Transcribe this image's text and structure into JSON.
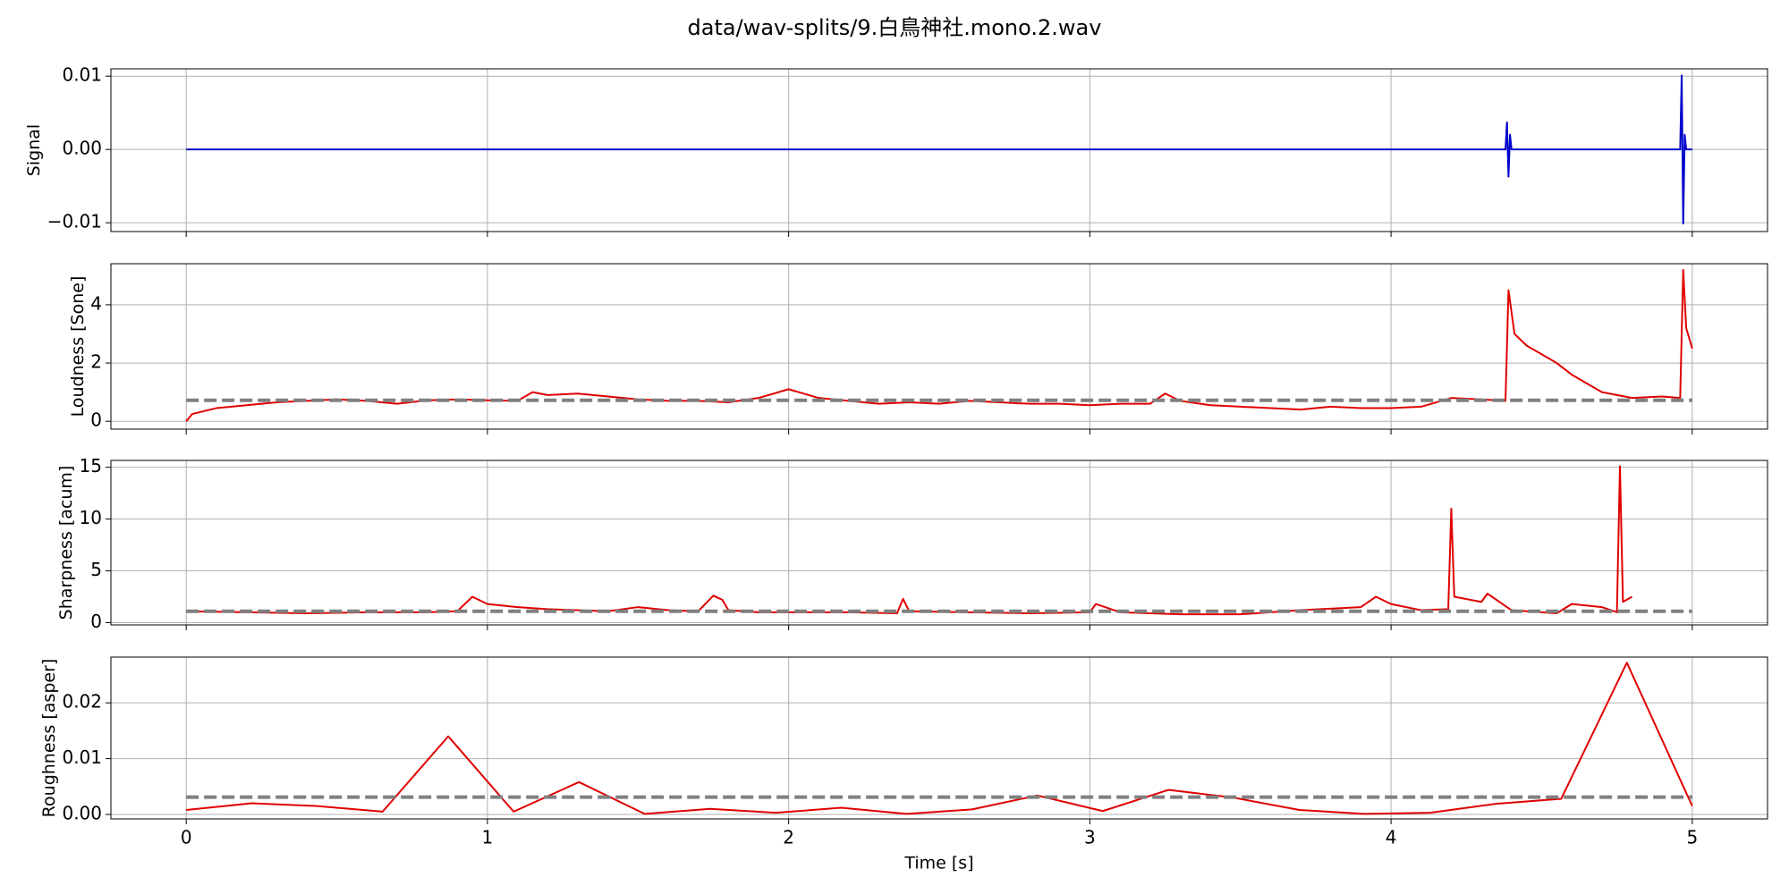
{
  "title": "data/wav-splits/9.白鳥神社.mono.2.wav",
  "chart_data": [
    {
      "type": "line",
      "ylabel": "Signal",
      "grid": true,
      "xlim": [
        -0.25,
        5.25
      ],
      "xticks": [
        0,
        1,
        2,
        3,
        4,
        5
      ],
      "ylim": [
        -0.0112,
        0.011
      ],
      "yticks": [
        {
          "value": -0.01,
          "label": "−0.01"
        },
        {
          "value": 0,
          "label": "0.00"
        },
        {
          "value": 0.01,
          "label": "0.01"
        }
      ],
      "series": [
        {
          "color": "#0000cc",
          "style": "solid",
          "x": [
            0,
            4.38,
            4.385,
            4.39,
            4.395,
            4.4,
            4.5,
            4.96,
            4.965,
            4.97,
            4.975,
            4.98,
            5.0
          ],
          "values": [
            0,
            0,
            0.0037,
            -0.0037,
            0.002,
            0,
            0,
            0,
            0.0101,
            -0.0101,
            0.002,
            0,
            0
          ]
        }
      ]
    },
    {
      "type": "line",
      "ylabel": "Loudness [Sone]",
      "grid": true,
      "xlim": [
        -0.25,
        5.25
      ],
      "xticks": [
        0,
        1,
        2,
        3,
        4,
        5
      ],
      "ylim": [
        -0.27,
        5.41
      ],
      "yticks": [
        0,
        2,
        4
      ],
      "series": [
        {
          "color": "#e00000",
          "style": "solid",
          "x": [
            0,
            0.02,
            0.1,
            0.2,
            0.3,
            0.4,
            0.5,
            0.6,
            0.7,
            0.8,
            0.9,
            1.0,
            1.1,
            1.15,
            1.2,
            1.3,
            1.4,
            1.5,
            1.6,
            1.7,
            1.8,
            1.9,
            2.0,
            2.1,
            2.2,
            2.3,
            2.4,
            2.5,
            2.6,
            2.7,
            2.8,
            2.9,
            3.0,
            3.1,
            3.2,
            3.25,
            3.3,
            3.4,
            3.5,
            3.6,
            3.7,
            3.8,
            3.9,
            4.0,
            4.1,
            4.2,
            4.3,
            4.38,
            4.39,
            4.41,
            4.45,
            4.5,
            4.55,
            4.6,
            4.7,
            4.8,
            4.9,
            4.96,
            4.97,
            4.98,
            5.0
          ],
          "values": [
            0,
            0.25,
            0.45,
            0.55,
            0.65,
            0.7,
            0.75,
            0.7,
            0.6,
            0.72,
            0.75,
            0.72,
            0.7,
            1.0,
            0.9,
            0.95,
            0.85,
            0.75,
            0.7,
            0.7,
            0.65,
            0.8,
            1.1,
            0.8,
            0.7,
            0.6,
            0.65,
            0.6,
            0.7,
            0.65,
            0.6,
            0.6,
            0.55,
            0.6,
            0.6,
            0.95,
            0.7,
            0.55,
            0.5,
            0.45,
            0.4,
            0.5,
            0.45,
            0.45,
            0.5,
            0.8,
            0.75,
            0.7,
            4.5,
            3.0,
            2.6,
            2.3,
            2.0,
            1.6,
            1.0,
            0.8,
            0.85,
            0.8,
            5.2,
            3.2,
            2.5
          ]
        },
        {
          "color": "#808080",
          "style": "dashed",
          "x": [
            0,
            5
          ],
          "values": [
            0.72,
            0.72
          ]
        }
      ]
    },
    {
      "type": "line",
      "ylabel": "Sharpness [acum]",
      "grid": true,
      "xlim": [
        -0.25,
        5.25
      ],
      "xticks": [
        0,
        1,
        2,
        3,
        4,
        5
      ],
      "ylim": [
        -0.22,
        15.66
      ],
      "yticks": [
        0,
        5,
        10,
        15
      ],
      "series": [
        {
          "color": "#e00000",
          "style": "solid",
          "x": [
            0,
            0.2,
            0.4,
            0.6,
            0.8,
            0.9,
            0.95,
            1.0,
            1.1,
            1.2,
            1.4,
            1.5,
            1.6,
            1.7,
            1.75,
            1.78,
            1.8,
            1.9,
            2.0,
            2.2,
            2.36,
            2.38,
            2.4,
            2.6,
            2.8,
            3.0,
            3.02,
            3.1,
            3.3,
            3.5,
            3.7,
            3.9,
            3.95,
            4.0,
            4.1,
            4.19,
            4.2,
            4.21,
            4.3,
            4.32,
            4.4,
            4.5,
            4.55,
            4.6,
            4.7,
            4.75,
            4.76,
            4.77,
            4.8
          ],
          "values": [
            1.1,
            1.0,
            0.9,
            1.0,
            1.0,
            1.1,
            2.5,
            1.8,
            1.5,
            1.3,
            1.1,
            1.5,
            1.2,
            1.1,
            2.6,
            2.2,
            1.2,
            1.0,
            1.0,
            1.0,
            0.9,
            2.3,
            1.1,
            1.0,
            0.9,
            1.0,
            1.8,
            1.0,
            0.8,
            0.8,
            1.2,
            1.5,
            2.5,
            1.8,
            1.2,
            1.3,
            11.0,
            2.5,
            2.0,
            2.8,
            1.2,
            1.0,
            0.9,
            1.8,
            1.5,
            1.0,
            15.1,
            2.0,
            2.5
          ]
        },
        {
          "color": "#808080",
          "style": "dashed",
          "x": [
            0,
            5
          ],
          "values": [
            1.1,
            1.1
          ]
        }
      ]
    },
    {
      "type": "line",
      "ylabel": "Roughness [asper]",
      "xlabel": "Time [s]",
      "grid": true,
      "xlim": [
        -0.25,
        5.25
      ],
      "xticks": [
        0,
        1,
        2,
        3,
        4,
        5
      ],
      "ylim": [
        -0.0008,
        0.0282
      ],
      "yticks": [
        {
          "value": 0,
          "label": "0.00"
        },
        {
          "value": 0.01,
          "label": "0.01"
        },
        {
          "value": 0.02,
          "label": "0.02"
        }
      ],
      "series": [
        {
          "color": "#e00000",
          "style": "solid",
          "x": [
            0,
            0.217,
            0.435,
            0.652,
            0.87,
            1.087,
            1.304,
            1.522,
            1.739,
            1.957,
            2.174,
            2.391,
            2.609,
            2.826,
            3.043,
            3.261,
            3.478,
            3.696,
            3.913,
            4.13,
            4.348,
            4.565,
            4.783,
            5.0
          ],
          "values": [
            0.0008,
            0.002,
            0.0015,
            0.0005,
            0.014,
            0.0005,
            0.0058,
            0.0001,
            0.001,
            0.0003,
            0.0012,
            0.0001,
            0.0009,
            0.0034,
            0.0006,
            0.0044,
            0.003,
            0.0008,
            0.0001,
            0.0003,
            0.0019,
            0.0028,
            0.0272,
            0.0015
          ]
        },
        {
          "color": "#808080",
          "style": "dashed",
          "x": [
            0,
            5
          ],
          "values": [
            0.0031,
            0.0031
          ]
        }
      ]
    }
  ]
}
